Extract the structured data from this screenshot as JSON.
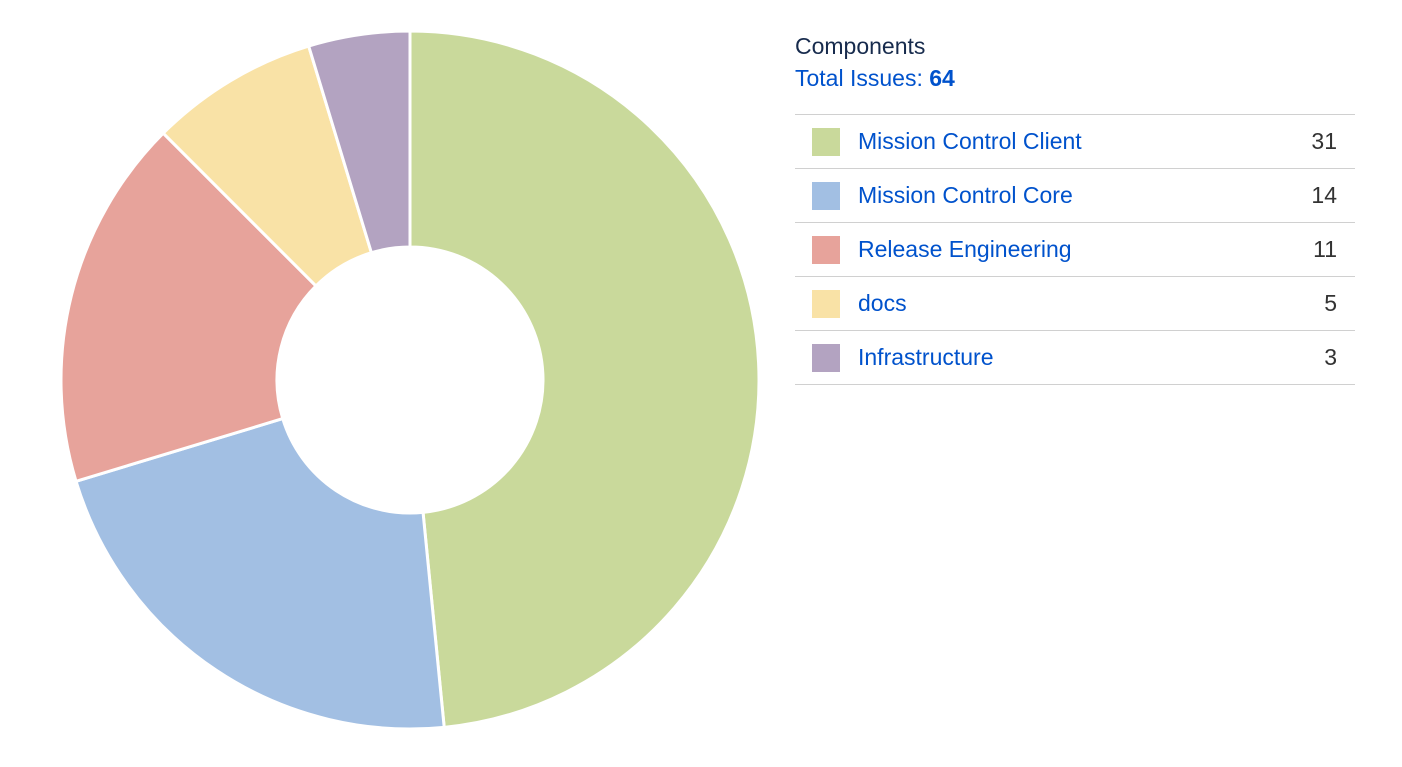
{
  "panel": {
    "title": "Components",
    "total_label": "Total Issues:",
    "total_value": "64"
  },
  "chart_data": {
    "type": "pie",
    "variant": "donut",
    "total": 64,
    "slices": [
      {
        "label": "Mission Control Client",
        "value": 31,
        "color": "#c9d99b"
      },
      {
        "label": "Mission Control Core",
        "value": 14,
        "color": "#a2bfe3"
      },
      {
        "label": "Release Engineering",
        "value": 11,
        "color": "#e7a39b"
      },
      {
        "label": "docs",
        "value": 5,
        "color": "#f9e2a6"
      },
      {
        "label": "Infrastructure",
        "value": 3,
        "color": "#b3a3c1"
      }
    ],
    "legend_position": "right",
    "start_angle": "top",
    "direction": "clockwise"
  }
}
